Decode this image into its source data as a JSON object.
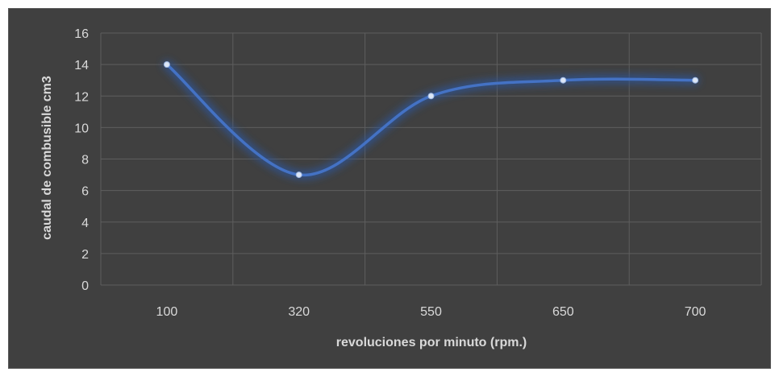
{
  "chart_data": {
    "type": "line",
    "categories": [
      "100",
      "320",
      "550",
      "650",
      "700"
    ],
    "values": [
      14,
      7,
      12,
      13,
      13
    ],
    "xlabel": "revoluciones por minuto (rpm.)",
    "ylabel": "caudal de combusible cm3",
    "ylim": [
      0,
      16
    ],
    "yticks": [
      0,
      2,
      4,
      6,
      8,
      10,
      12,
      14,
      16
    ],
    "grid": true,
    "smooth": true,
    "colors": {
      "background": "#404040",
      "grid": "#5e5e5e",
      "line": "#4472c4",
      "glow": "#2f5597",
      "text": "#d9d9d9"
    }
  }
}
